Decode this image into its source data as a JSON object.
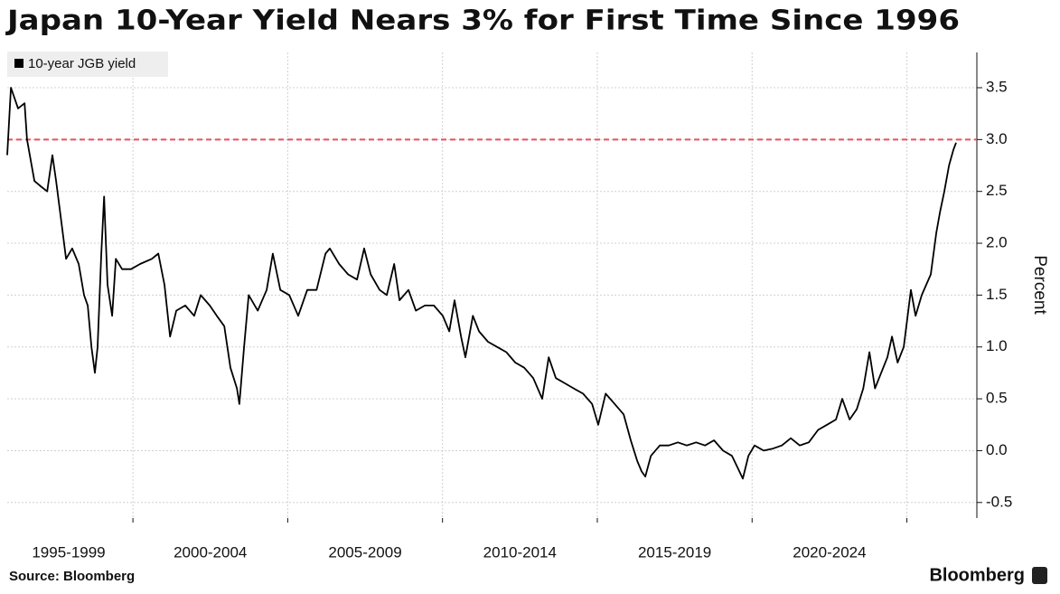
{
  "chart_data": {
    "type": "line",
    "title": "Japan 10-Year Yield Nears 3% for First Time Since 1996",
    "y_axis_label": "Percent",
    "source": "Source: Bloomberg",
    "brand": "Bloomberg",
    "x": [
      1995.94,
      1996.06,
      1996.29,
      1996.5,
      1996.58,
      1996.82,
      1997.02,
      1997.23,
      1997.4,
      1997.52,
      1997.69,
      1997.84,
      1998.04,
      1998.25,
      1998.42,
      1998.54,
      1998.66,
      1998.77,
      1998.86,
      1998.98,
      1999.07,
      1999.18,
      1999.33,
      1999.45,
      1999.65,
      1999.94,
      2000.23,
      2000.61,
      2000.82,
      2001.02,
      2001.2,
      2001.4,
      2001.69,
      2001.98,
      2002.19,
      2002.48,
      2002.71,
      2002.95,
      2003.15,
      2003.36,
      2003.44,
      2003.59,
      2003.74,
      2004.03,
      2004.32,
      2004.52,
      2004.76,
      2005.05,
      2005.34,
      2005.63,
      2005.93,
      2006.22,
      2006.36,
      2006.66,
      2006.95,
      2007.24,
      2007.47,
      2007.68,
      2007.97,
      2008.2,
      2008.44,
      2008.61,
      2008.9,
      2009.14,
      2009.43,
      2009.72,
      2010.01,
      2010.22,
      2010.39,
      2010.6,
      2010.74,
      2010.98,
      2011.18,
      2011.47,
      2011.76,
      2012.06,
      2012.35,
      2012.64,
      2012.93,
      2013.22,
      2013.43,
      2013.66,
      2013.95,
      2014.24,
      2014.54,
      2014.83,
      2015.03,
      2015.27,
      2015.56,
      2015.85,
      2016.08,
      2016.29,
      2016.43,
      2016.55,
      2016.73,
      2017.02,
      2017.31,
      2017.6,
      2017.89,
      2018.19,
      2018.48,
      2018.77,
      2019.06,
      2019.35,
      2019.59,
      2019.7,
      2019.88,
      2020.08,
      2020.37,
      2020.67,
      2020.96,
      2021.25,
      2021.54,
      2021.83,
      2022.13,
      2022.42,
      2022.71,
      2022.91,
      2023.15,
      2023.38,
      2023.59,
      2023.79,
      2023.97,
      2024.17,
      2024.37,
      2024.52,
      2024.7,
      2024.9,
      2025.13,
      2025.28,
      2025.48,
      2025.77,
      2025.95,
      2026.07,
      2026.21,
      2026.36,
      2026.5,
      2026.59
    ],
    "series": [
      {
        "name": "10-year JGB yield",
        "color": "#000000",
        "values": [
          2.85,
          3.5,
          3.3,
          3.35,
          3.0,
          2.6,
          2.55,
          2.5,
          2.85,
          2.6,
          2.2,
          1.85,
          1.95,
          1.8,
          1.5,
          1.4,
          1.0,
          0.75,
          1.0,
          1.9,
          2.45,
          1.6,
          1.3,
          1.85,
          1.75,
          1.75,
          1.8,
          1.85,
          1.9,
          1.6,
          1.1,
          1.35,
          1.4,
          1.3,
          1.5,
          1.4,
          1.3,
          1.2,
          0.8,
          0.6,
          0.45,
          1.0,
          1.5,
          1.35,
          1.55,
          1.9,
          1.55,
          1.5,
          1.3,
          1.55,
          1.55,
          1.9,
          1.95,
          1.8,
          1.7,
          1.65,
          1.95,
          1.7,
          1.55,
          1.5,
          1.8,
          1.45,
          1.55,
          1.35,
          1.4,
          1.4,
          1.3,
          1.15,
          1.45,
          1.1,
          0.9,
          1.3,
          1.15,
          1.05,
          1.0,
          0.95,
          0.85,
          0.8,
          0.7,
          0.5,
          0.9,
          0.7,
          0.65,
          0.6,
          0.55,
          0.45,
          0.25,
          0.55,
          0.45,
          0.35,
          0.1,
          -0.1,
          -0.2,
          -0.25,
          -0.05,
          0.05,
          0.05,
          0.08,
          0.05,
          0.08,
          0.05,
          0.1,
          0.0,
          -0.05,
          -0.2,
          -0.27,
          -0.05,
          0.05,
          0.0,
          0.02,
          0.05,
          0.12,
          0.05,
          0.08,
          0.2,
          0.25,
          0.3,
          0.5,
          0.3,
          0.4,
          0.6,
          0.95,
          0.6,
          0.75,
          0.9,
          1.1,
          0.85,
          1.0,
          1.55,
          1.3,
          1.5,
          1.7,
          2.1,
          2.3,
          2.5,
          2.75,
          2.9,
          2.97
        ]
      }
    ],
    "xlim": [
      1995.94,
      2027.26
    ],
    "xticks": [
      {
        "value": 1995,
        "label": "1995-1999"
      },
      {
        "value": 2000,
        "label": "2000-2004"
      },
      {
        "value": 2005,
        "label": "2005-2009"
      },
      {
        "value": 2010,
        "label": "2010-2014"
      },
      {
        "value": 2015,
        "label": "2015-2019"
      },
      {
        "value": 2020,
        "label": "2020-2024"
      }
    ],
    "xgrid": [
      2000,
      2005,
      2010,
      2015,
      2020,
      2025
    ],
    "ylim": [
      -0.65,
      3.84
    ],
    "yticks": [
      -0.5,
      {
        "value": 0,
        "label": "0.0"
      },
      0.5,
      {
        "value": 1,
        "label": "1.0"
      },
      1.5,
      {
        "value": 2,
        "label": "2.0"
      },
      2.5,
      {
        "value": 3,
        "label": "3.0"
      },
      3.5
    ],
    "reference_line": {
      "value": 3,
      "color": "#e8505b"
    },
    "grid": true,
    "legend": "top-left"
  }
}
